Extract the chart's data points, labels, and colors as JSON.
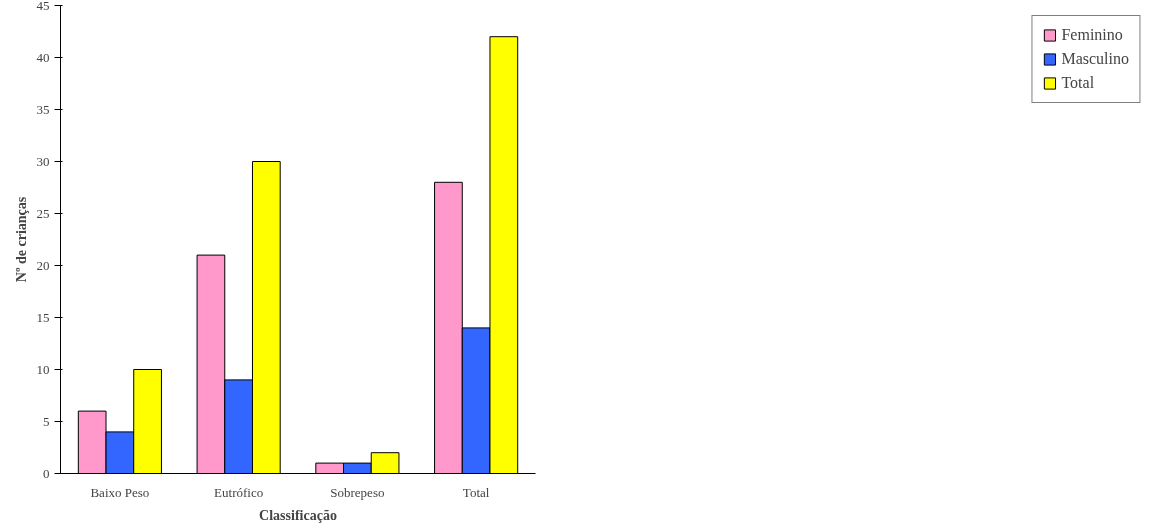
{
  "chart_data": {
    "type": "bar",
    "xlabel": "Classificação",
    "ylabel": "Nº de crianças",
    "categories": [
      "Baixo Peso",
      "Eutrófico",
      "Sobrepeso",
      "Total"
    ],
    "series": [
      {
        "name": "Feminino",
        "color": "#ff99cc",
        "values": [
          6,
          21,
          1,
          28
        ]
      },
      {
        "name": "Masculino",
        "color": "#3366ff",
        "values": [
          4,
          9,
          1,
          14
        ]
      },
      {
        "name": "Total",
        "color": "#ffff00",
        "values": [
          10,
          30,
          2,
          42
        ]
      }
    ],
    "ylim": [
      0,
      45
    ],
    "yticks": [
      0,
      5,
      10,
      15,
      20,
      25,
      30,
      35,
      40,
      45
    ],
    "grid": false,
    "legend": "right"
  }
}
